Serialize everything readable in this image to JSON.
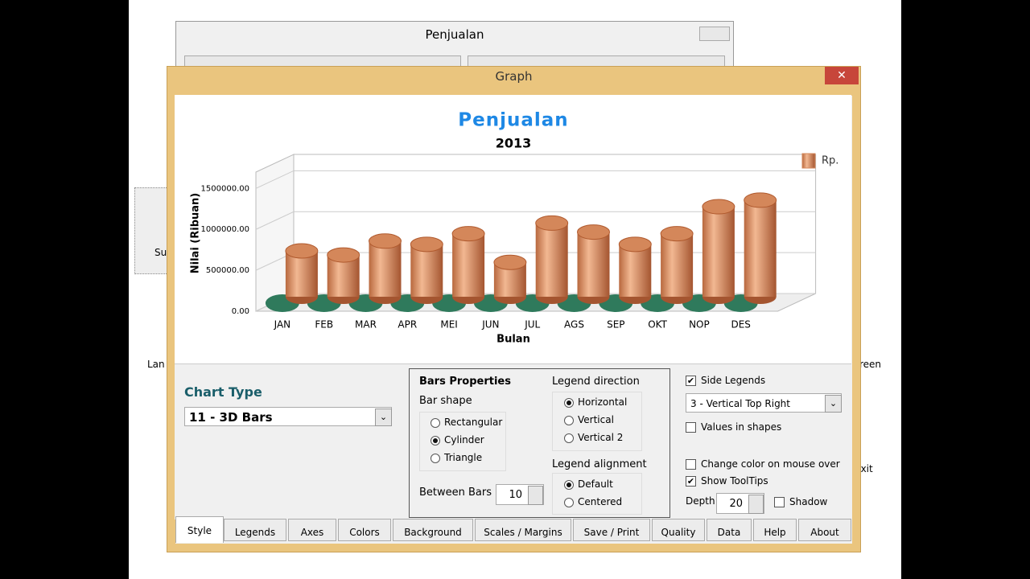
{
  "background_window": {
    "title": "Penjualan"
  },
  "window": {
    "title": "Graph"
  },
  "desktop_labels": [
    "Su",
    "Lan",
    "reen",
    "Exit"
  ],
  "chart_data": {
    "type": "bar",
    "title": "Penjualan",
    "subtitle": "2013",
    "x_label": "Bulan",
    "y_label": "Nilai (Ribuan)",
    "categories": [
      "JAN",
      "FEB",
      "MAR",
      "APR",
      "MEI",
      "JUN",
      "JUL",
      "AGS",
      "SEP",
      "OKT",
      "NOP",
      "DES"
    ],
    "series": [
      {
        "name": "Rp.",
        "color": "#d4875a",
        "values": [
          560000,
          510000,
          680000,
          640000,
          770000,
          420000,
          900000,
          790000,
          640000,
          770000,
          1100000,
          1180000
        ]
      }
    ],
    "ylim": [
      0,
      1700000
    ],
    "yticks": [
      {
        "value": 0,
        "label": "0.00"
      },
      {
        "value": 500000,
        "label": "500000.00"
      },
      {
        "value": 1000000,
        "label": "1000000.00"
      },
      {
        "value": 1500000,
        "label": "1500000.00"
      }
    ],
    "grid": true,
    "legend": "top-right"
  },
  "controls": {
    "chart_type_label": "Chart Type",
    "chart_type": "11 - 3D Bars",
    "bars_properties": "Bars Properties",
    "bar_shape_label": "Bar shape",
    "bar_shapes": [
      "Rectangular",
      "Cylinder",
      "Triangle"
    ],
    "bar_shape_selected": 1,
    "between_bars_label": "Between Bars",
    "between_bars": "10",
    "legend_direction_label": "Legend direction",
    "legend_directions": [
      "Horizontal",
      "Vertical",
      "Vertical 2"
    ],
    "legend_direction_selected": 0,
    "legend_alignment_label": "Legend alignment",
    "legend_alignments": [
      "Default",
      "Centered"
    ],
    "legend_alignment_selected": 0,
    "checks": [
      {
        "label": "Side Legends",
        "checked": true
      },
      {
        "label": "Values in shapes",
        "checked": false
      },
      {
        "label": "Change color on mouse over",
        "checked": false
      },
      {
        "label": "Show ToolTips",
        "checked": true
      },
      {
        "label": "Shadow",
        "checked": false
      }
    ],
    "legend_position": "3 - Vertical Top Right",
    "depth_label": "Depth",
    "depth": "20"
  },
  "tabs": [
    "Style",
    "Legends",
    "Axes",
    "Colors",
    "Background",
    "Scales / Margins",
    "Save / Print",
    "Quality",
    "Data",
    "Help",
    "About"
  ],
  "tab_selected": 0
}
